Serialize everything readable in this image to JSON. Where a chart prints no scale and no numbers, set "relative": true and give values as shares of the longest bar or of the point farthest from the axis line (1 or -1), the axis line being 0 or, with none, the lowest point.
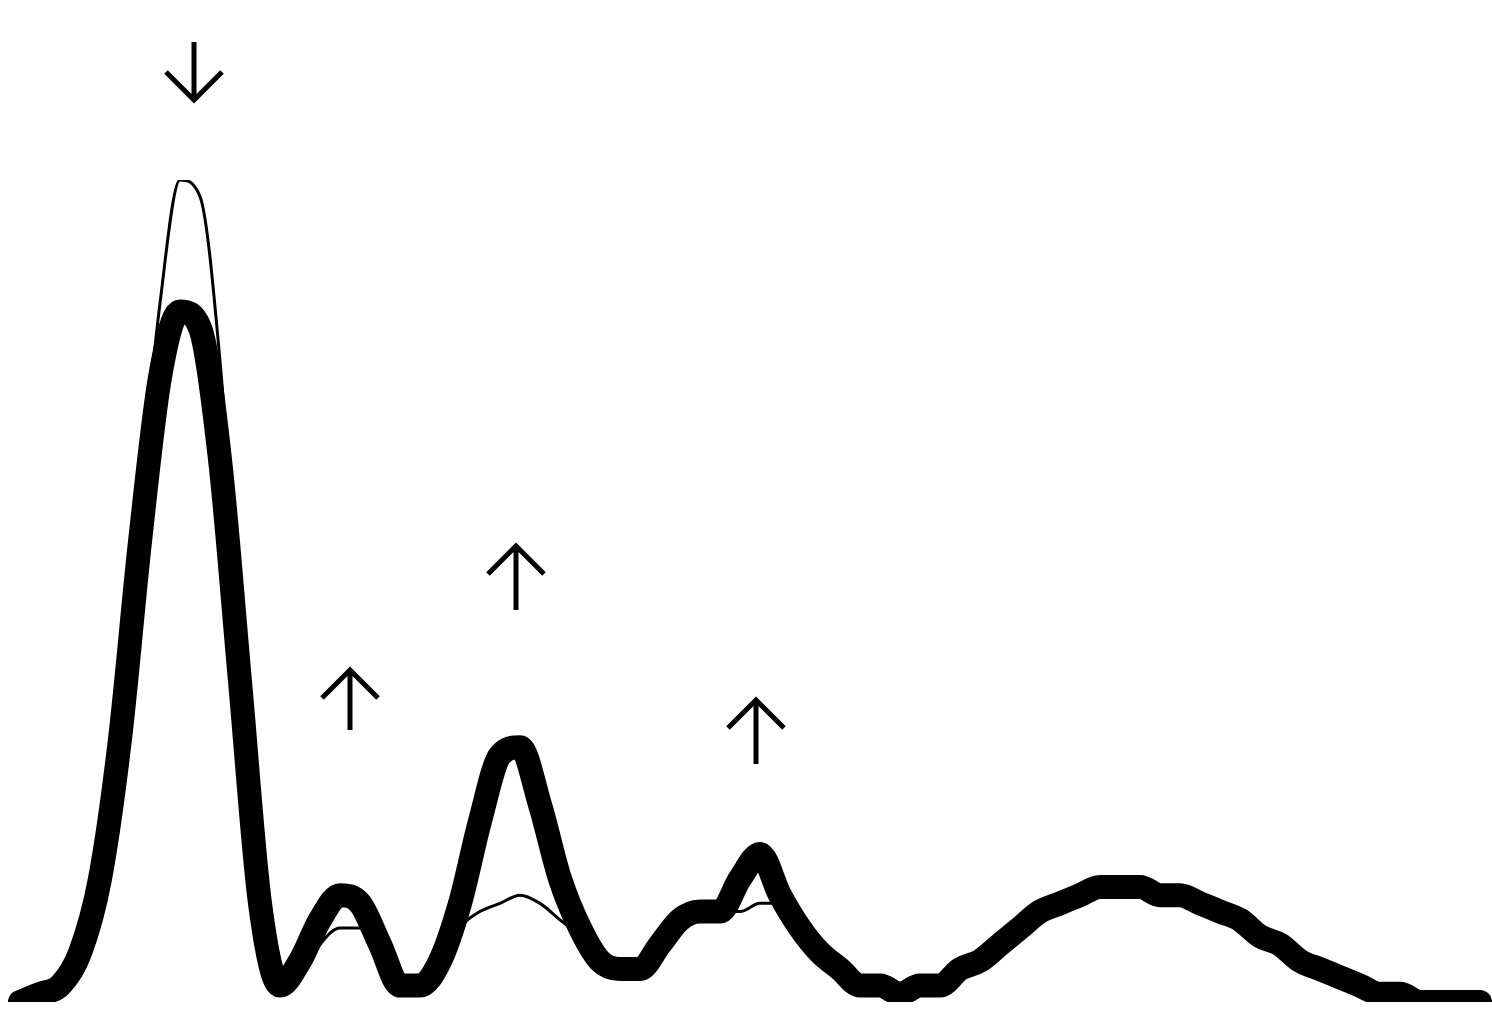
{
  "chart_data": {
    "type": "line",
    "relative": true,
    "marker": "none",
    "legend": false,
    "categories": [
      null,
      null,
      null,
      null,
      null,
      null,
      null,
      null,
      null,
      null,
      null,
      null,
      null,
      null,
      null,
      null,
      null,
      null,
      null,
      null,
      null,
      null,
      null,
      null,
      null,
      null,
      null,
      null,
      null,
      null,
      null,
      null,
      null,
      null,
      null,
      null,
      null,
      null,
      null,
      null,
      null,
      null,
      null,
      null,
      null,
      null,
      null,
      null,
      null,
      null,
      null,
      null,
      null,
      null,
      null,
      null,
      null,
      null,
      null,
      null,
      null,
      null,
      null,
      null,
      null,
      null,
      null,
      null,
      null,
      null,
      null,
      null,
      null,
      null
    ],
    "series": [
      {
        "color": "#000000",
        "values": [
          0,
          0.01,
          0.02,
          0.06,
          0.15,
          0.32,
          0.56,
          0.76,
          0.84,
          0.82,
          0.66,
          0.39,
          0.12,
          0.02,
          0.05,
          0.1,
          0.13,
          0.12,
          0.07,
          0.02,
          0.02,
          0.05,
          0.12,
          0.22,
          0.3,
          0.31,
          0.24,
          0.15,
          0.09,
          0.05,
          0.04,
          0.04,
          0.07,
          0.1,
          0.11,
          0.11,
          0.15,
          0.18,
          0.13,
          0.09,
          0.06,
          0.04,
          0.02,
          0.02,
          0.01,
          0.02,
          0.02,
          0.04,
          0.05,
          0.07,
          0.09,
          0.11,
          0.12,
          0.13,
          0.14,
          0.14,
          0.14,
          0.13,
          0.13,
          0.12,
          0.11,
          0.1,
          0.08,
          0.07,
          0.05,
          0.04,
          0.03,
          0.02,
          0.01,
          0.01,
          0,
          0,
          0,
          0
        ]
      },
      {
        "color": "#000000",
        "values": [
          0,
          0.01,
          0.02,
          0.06,
          0.15,
          0.32,
          0.61,
          0.85,
          1.0,
          0.98,
          0.78,
          0.44,
          0.12,
          0.02,
          0.03,
          0.07,
          0.09,
          0.09,
          0.06,
          0.02,
          0.02,
          0.04,
          0.09,
          0.11,
          0.12,
          0.13,
          0.12,
          0.1,
          0.08,
          0.05,
          0.04,
          0.04,
          0.07,
          0.1,
          0.11,
          0.11,
          0.11,
          0.12,
          0.12,
          0.09,
          0.06,
          0.04,
          0.02,
          0.02,
          0.01,
          0.02,
          0.02,
          0.04,
          0.05,
          0.07,
          0.09,
          0.11,
          0.12,
          0.13,
          0.14,
          0.14,
          0.14,
          0.13,
          0.13,
          0.12,
          0.11,
          0.1,
          0.08,
          0.07,
          0.05,
          0.04,
          0.03,
          0.02,
          0.01,
          0.01,
          0,
          0,
          0,
          0
        ]
      }
    ]
  }
}
